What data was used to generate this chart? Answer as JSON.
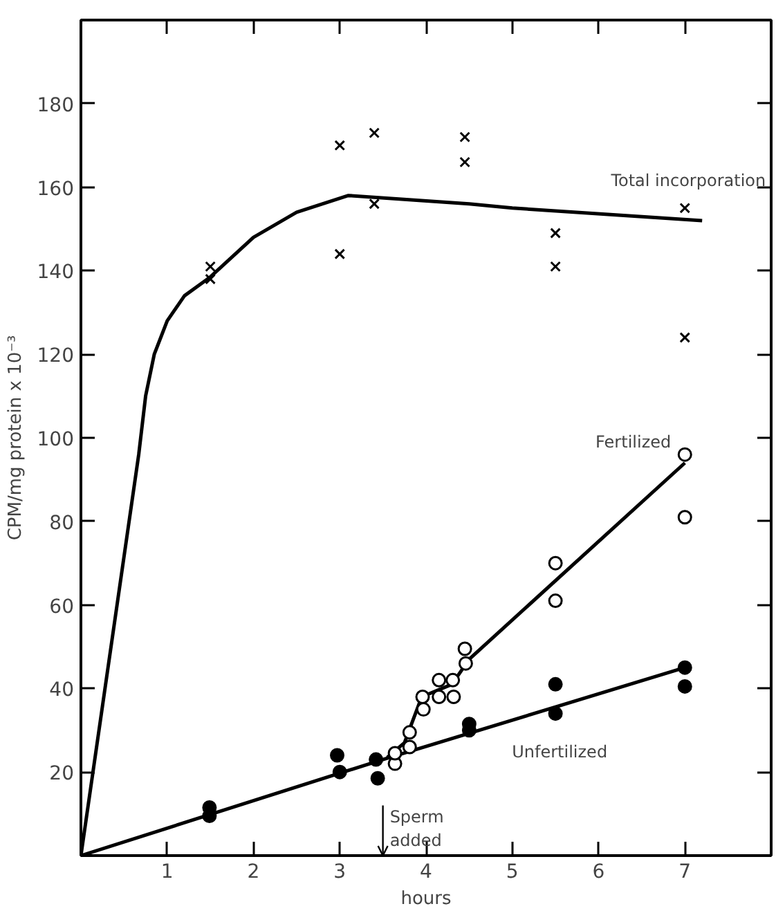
{
  "chart_data": {
    "type": "scatter",
    "xlabel": "hours",
    "ylabel": "CPM/mg protein x 10⁻³",
    "xlim": [
      0,
      8
    ],
    "ylim": [
      0,
      200
    ],
    "xticks": [
      1,
      2,
      3,
      4,
      5,
      6,
      7
    ],
    "yticks": [
      20,
      40,
      60,
      80,
      100,
      120,
      140,
      160,
      180
    ],
    "grid": false,
    "series": [
      {
        "marker": "cross",
        "color": "#000000",
        "x": [
          1.5,
          1.5,
          3.0,
          3.0,
          3.4,
          3.4,
          4.45,
          4.45,
          5.5,
          5.5,
          7.0,
          7.0
        ],
        "values": [
          141,
          138,
          170,
          144,
          173,
          156,
          172,
          166,
          149,
          141,
          155,
          124
        ]
      },
      {
        "marker": "circle",
        "color": "#ffffff",
        "x": [
          3.64,
          3.64,
          3.81,
          3.81,
          3.97,
          3.96,
          4.15,
          4.15,
          4.31,
          4.32,
          4.46,
          4.45,
          5.5,
          5.5,
          7.0,
          7.0
        ],
        "values": [
          22,
          24.5,
          26,
          29.5,
          35,
          38,
          42,
          38,
          42,
          38,
          46,
          49.5,
          70,
          61,
          96,
          81
        ]
      },
      {
        "marker": "circle",
        "color": "#000000",
        "x": [
          1.49,
          1.49,
          2.97,
          3.0,
          3.42,
          3.44,
          4.5,
          4.5,
          5.5,
          5.5,
          7.0,
          7.0
        ],
        "values": [
          11.5,
          9.5,
          24,
          20,
          23,
          18.5,
          31.5,
          30,
          41,
          34,
          45,
          40.5
        ]
      },
      {
        "type": "line",
        "name": "Total incorporation",
        "color": "#000000",
        "x": [
          0,
          0.67,
          0.75,
          0.85,
          1.0,
          1.2,
          1.5,
          2.0,
          2.5,
          3.1,
          4.5,
          5.0,
          7.2
        ],
        "values": [
          0,
          96,
          110,
          120,
          128,
          134,
          138.5,
          148,
          154,
          158,
          156,
          155,
          152
        ]
      },
      {
        "type": "line",
        "name": "Fertilized",
        "color": "#000000",
        "x": [
          3.55,
          3.75,
          3.95,
          4.3,
          4.5,
          7.0
        ],
        "values": [
          23.5,
          27,
          38,
          41,
          47,
          94
        ]
      },
      {
        "type": "line",
        "name": "Unfertilized",
        "color": "#000000",
        "x": [
          0,
          3.5,
          7.0
        ],
        "values": [
          0,
          23,
          45
        ]
      }
    ],
    "ref_lines": [
      {
        "axis": "x",
        "value": 3.5,
        "label": "Sperm added"
      }
    ]
  }
}
